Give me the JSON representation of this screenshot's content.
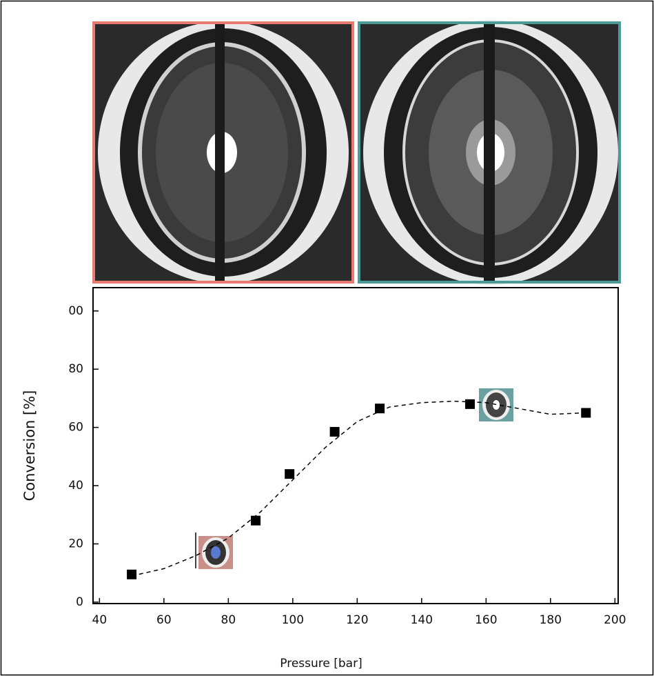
{
  "chart_data": {
    "type": "scatter",
    "x_label": "Pressure [bar]",
    "y_label": "Conversion [%]",
    "series": [
      {
        "color": "#000000",
        "marker": "square",
        "x": [
          50,
          88.5,
          99,
          113,
          127,
          155,
          191
        ],
        "values": [
          9.5,
          28,
          44,
          58.5,
          66.5,
          68,
          65
        ]
      },
      {
        "color": "#000000",
        "style": "dashed",
        "x": [
          50,
          60,
          70,
          80,
          90,
          100,
          110,
          120,
          130,
          140,
          150,
          160,
          170,
          180,
          191
        ],
        "values": [
          9,
          11.5,
          16,
          22,
          31,
          42,
          53,
          62,
          67,
          68.5,
          69,
          68.5,
          66.5,
          64.5,
          65
        ]
      }
    ],
    "xlim": [
      38,
      201
    ],
    "xticks": [
      40,
      60,
      80,
      100,
      120,
      140,
      160,
      180,
      200
    ],
    "ylim": [
      -0.5,
      108
    ],
    "yticks": [
      0,
      20,
      40,
      60,
      80,
      {
        "value": 100,
        "label": "00"
      }
    ],
    "grid": false
  }
}
